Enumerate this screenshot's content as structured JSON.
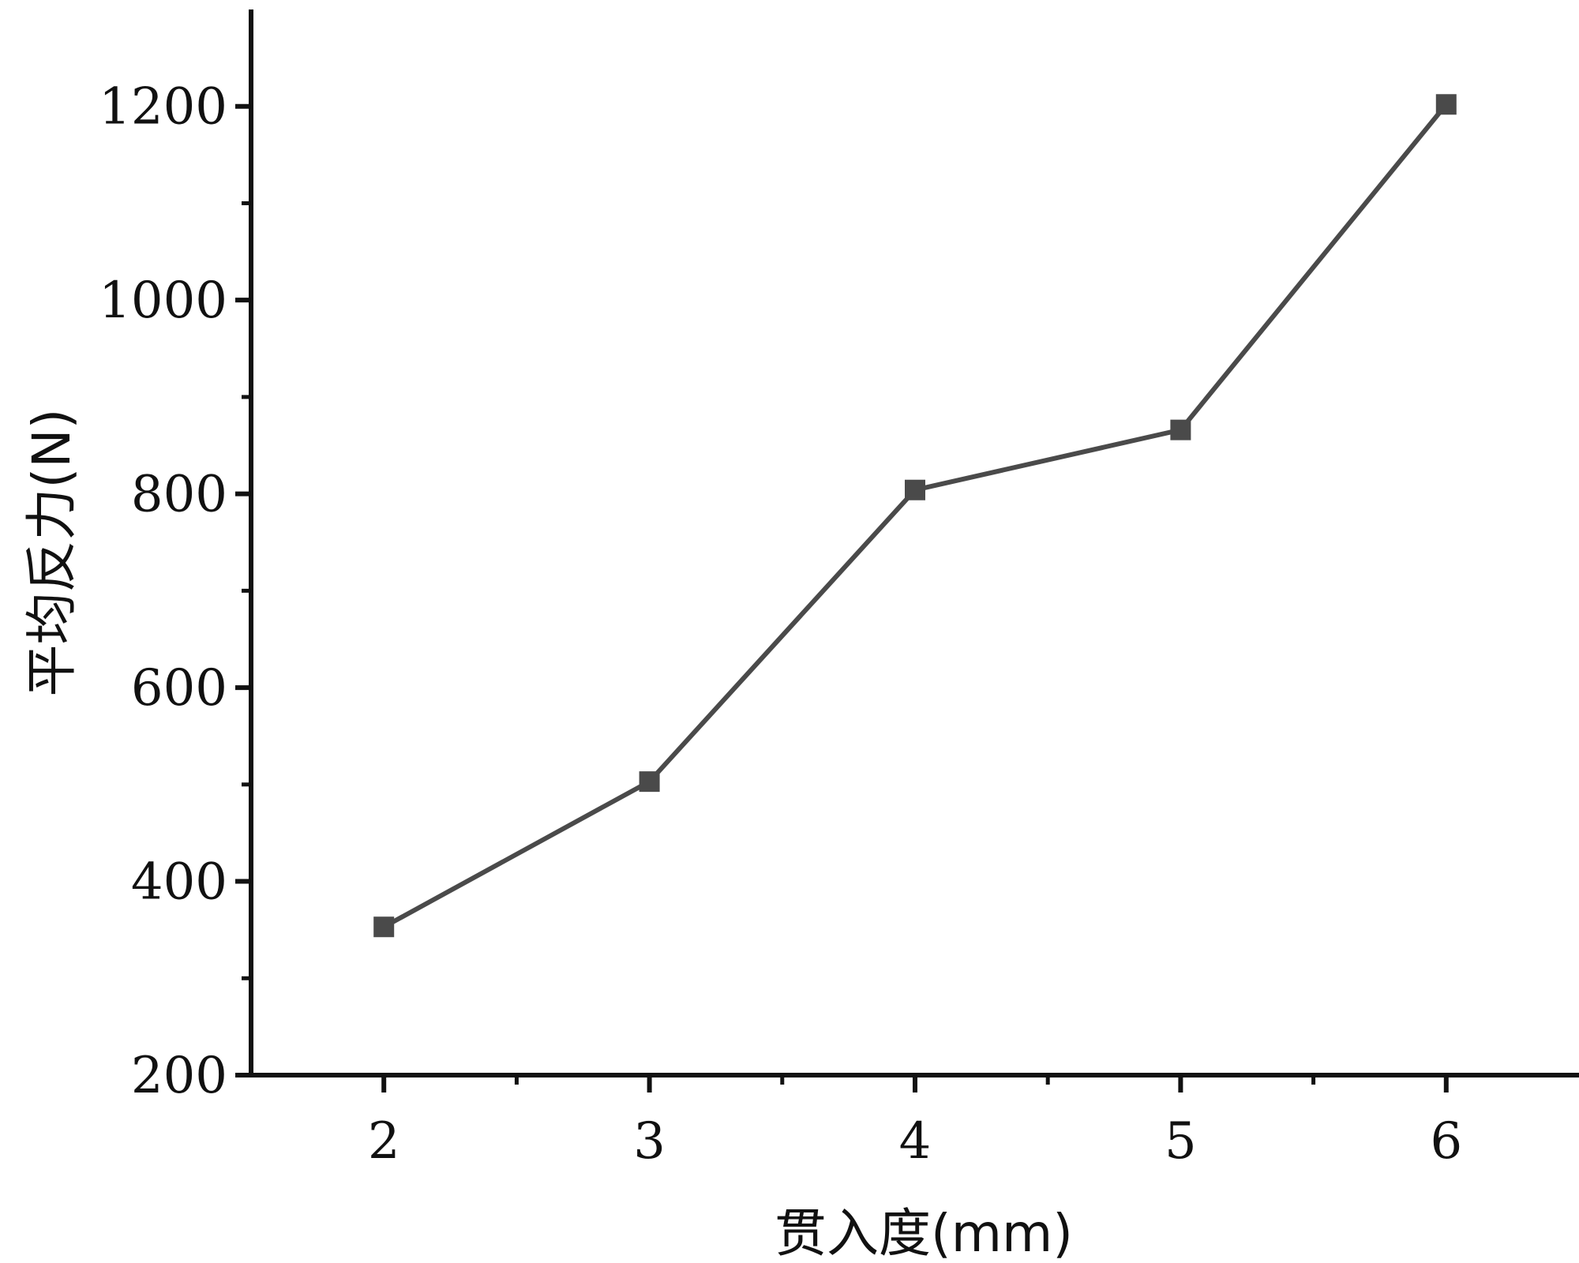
{
  "chart_data": {
    "type": "line",
    "title": "",
    "xlabel": "贯入度(mm)",
    "ylabel": "平均反力(N)",
    "x_ticks": [
      "2",
      "3",
      "4",
      "5",
      "6"
    ],
    "y_ticks": [
      "200",
      "400",
      "600",
      "800",
      "1000",
      "1200"
    ],
    "xlim": [
      1.5,
      6.5
    ],
    "ylim": [
      200,
      1300
    ],
    "grid": false,
    "legend": "none",
    "series": [
      {
        "x": [
          2,
          3,
          4,
          5,
          6
        ],
        "y": [
          353,
          503,
          804,
          866,
          1202
        ],
        "color": "#4a4a4a",
        "marker": "square"
      }
    ]
  }
}
